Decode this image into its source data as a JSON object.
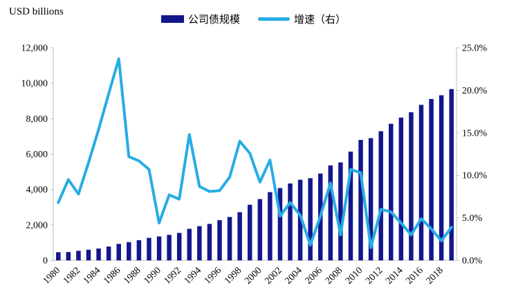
{
  "header": {
    "unit_label": "USD billions"
  },
  "legend": {
    "items": [
      {
        "label": "公司债规模",
        "swatch": "bar-swatch",
        "color": "#14168C"
      },
      {
        "label": "增速（右）",
        "swatch": "line-swatch",
        "color": "#27ACE4"
      }
    ]
  },
  "colors": {
    "bar": "#14168C",
    "line": "#27ACE4",
    "axis": "#BFBFBF",
    "text": "#000000",
    "background": "#FFFFFF"
  },
  "chart_data": {
    "type": "bar",
    "subtype": "bar+line-dual-axis",
    "title": "",
    "unit_label": "USD billions",
    "grid": false,
    "legend_position": "top-center",
    "categories": [
      1980,
      1981,
      1982,
      1983,
      1984,
      1985,
      1986,
      1987,
      1988,
      1989,
      1990,
      1991,
      1992,
      1993,
      1994,
      1995,
      1996,
      1997,
      1998,
      1999,
      2000,
      2001,
      2002,
      2003,
      2004,
      2005,
      2006,
      2007,
      2008,
      2009,
      2010,
      2011,
      2012,
      2013,
      2014,
      2015,
      2016,
      2017,
      2018,
      2019
    ],
    "series": [
      {
        "name": "公司债规模",
        "type": "bar",
        "axis": "left",
        "color": "#14168C",
        "values": [
          460,
          470,
          540,
          600,
          670,
          780,
          930,
          1030,
          1140,
          1270,
          1350,
          1440,
          1550,
          1780,
          1930,
          2060,
          2270,
          2450,
          2720,
          3140,
          3460,
          3850,
          4080,
          4340,
          4550,
          4640,
          4900,
          5360,
          5530,
          6140,
          6800,
          6900,
          7290,
          7710,
          8060,
          8360,
          8780,
          9110,
          9320,
          9670
        ]
      },
      {
        "name": "增速（右）",
        "type": "line",
        "axis": "right",
        "color": "#27ACE4",
        "values": [
          6.8,
          9.5,
          7.8,
          11.5,
          15.4,
          19.6,
          23.7,
          12.2,
          11.7,
          10.7,
          4.4,
          7.7,
          7.2,
          14.8,
          8.7,
          8.1,
          8.2,
          9.8,
          14.0,
          12.6,
          9.2,
          11.8,
          5.2,
          6.8,
          5.3,
          1.8,
          5.2,
          9.1,
          3.0,
          10.7,
          10.3,
          1.5,
          6.0,
          5.7,
          4.4,
          3.0,
          4.9,
          3.7,
          2.3,
          3.9
        ]
      }
    ],
    "left_axis": {
      "min": 0,
      "max": 12000,
      "tick_labels": [
        "0",
        "2,000",
        "4,000",
        "6,000",
        "8,000",
        "10,000",
        "12,000"
      ]
    },
    "right_axis": {
      "min": 0,
      "max": 25,
      "tick_labels": [
        "0.0%",
        "5.0%",
        "10.0%",
        "15.0%",
        "20.0%",
        "25.0%"
      ]
    },
    "x_tick_labels": [
      "1980",
      "1982",
      "1984",
      "1986",
      "1988",
      "1990",
      "1992",
      "1994",
      "1996",
      "1998",
      "2000",
      "2002",
      "2004",
      "2006",
      "2008",
      "2010",
      "2012",
      "2014",
      "2016",
      "2018"
    ]
  }
}
